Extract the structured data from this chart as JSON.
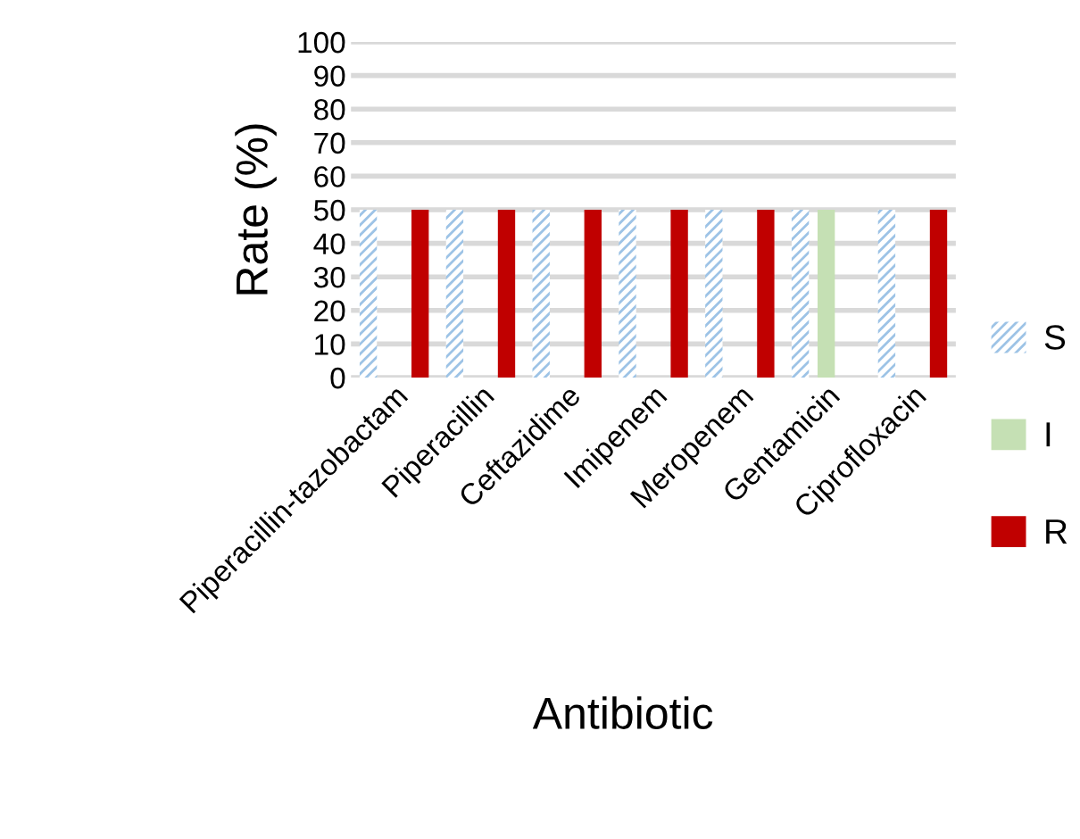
{
  "chart_data": {
    "type": "bar",
    "xlabel": "Antibiotic",
    "ylabel": "Rate (%)",
    "categories": [
      "Piperacillin-tazobactam",
      "Piperacillin",
      "Ceftazidime",
      "Imipenem",
      "Meropenem",
      "Gentamicin",
      "Ciprofloxacin"
    ],
    "series": [
      {
        "name": "S",
        "color": "#9dc3e6",
        "values": [
          50,
          50,
          50,
          50,
          50,
          50,
          50
        ]
      },
      {
        "name": "I",
        "color": "#c5e0b4",
        "values": [
          null,
          null,
          null,
          null,
          null,
          50,
          null
        ]
      },
      {
        "name": "R",
        "color": "#c00000",
        "values": [
          50,
          50,
          50,
          50,
          50,
          null,
          50
        ]
      }
    ],
    "ylim": [
      0,
      100
    ],
    "yticks": [
      0,
      10,
      20,
      30,
      40,
      50,
      60,
      70,
      80,
      90,
      100
    ],
    "grid": "y",
    "legend": "right"
  }
}
